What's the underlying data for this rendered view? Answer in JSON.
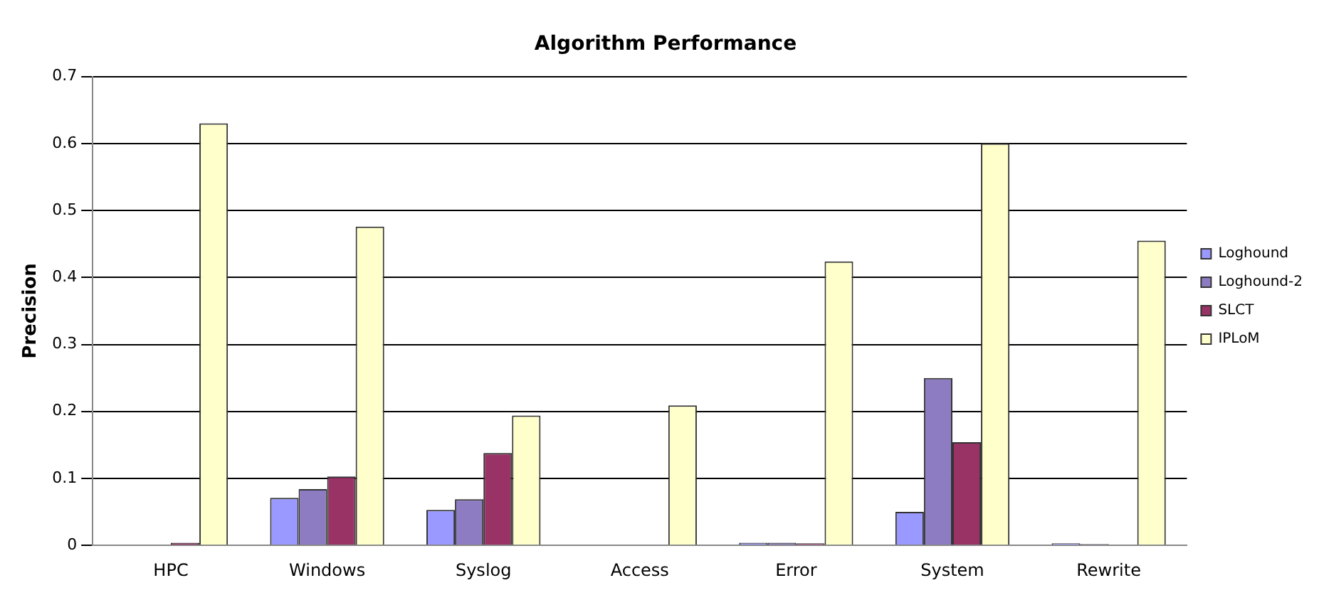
{
  "chart_data": {
    "type": "bar",
    "title": "Algorithm Performance",
    "ylabel": "Precision",
    "categories": [
      "HPC",
      "Windows",
      "Syslog",
      "Access",
      "Error",
      "System",
      "Rewrite"
    ],
    "series": [
      {
        "name": "Loghound",
        "color": "#9999ff",
        "values": [
          0,
          0.071,
          0.053,
          0,
          0.004,
          0.05,
          0.003
        ]
      },
      {
        "name": "Loghound-2",
        "color": "#8e7cc3",
        "values": [
          0,
          0.084,
          0.069,
          0,
          0.004,
          0.25,
          0.002
        ]
      },
      {
        "name": "SLCT",
        "color": "#993366",
        "values": [
          0.004,
          0.103,
          0.138,
          0,
          0.003,
          0.154,
          0
        ]
      },
      {
        "name": "IPLoM",
        "color": "#ffffcc",
        "values": [
          0.63,
          0.476,
          0.194,
          0.209,
          0.424,
          0.6,
          0.455
        ]
      }
    ],
    "ylim": [
      0,
      0.7
    ],
    "yticks": [
      0,
      0.1,
      0.2,
      0.3,
      0.4,
      0.5,
      0.6,
      0.7
    ],
    "grid": "y",
    "legend": "right"
  }
}
